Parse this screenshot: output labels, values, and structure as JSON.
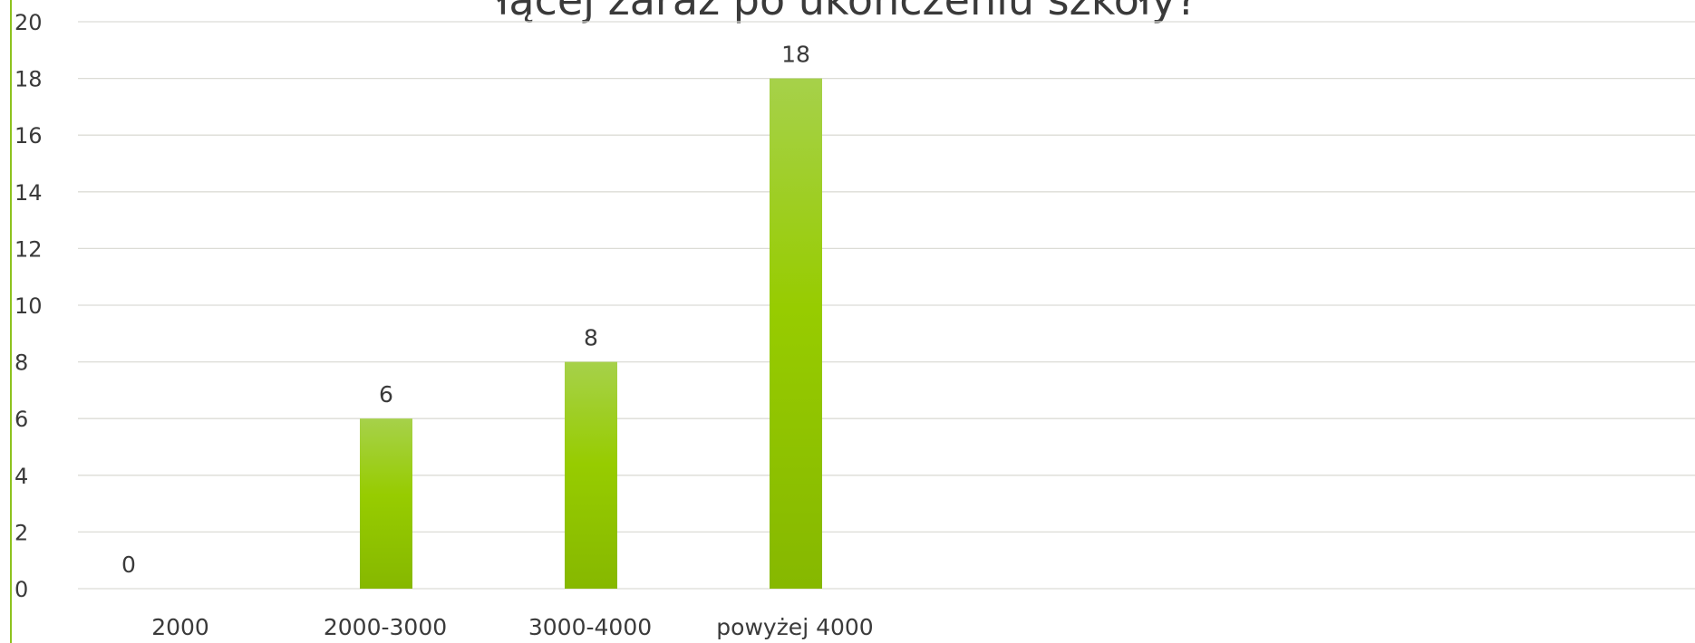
{
  "chart_data": {
    "type": "bar",
    "title": "łącej zaraz po ukończeniu szkoły?",
    "categories": [
      "2000",
      "2000-3000",
      "3000-4000",
      "powyżej 4000"
    ],
    "values": [
      0,
      6,
      8,
      18
    ],
    "yticks": [
      "0",
      "2",
      "4",
      "6",
      "8",
      "10",
      "12",
      "14",
      "16",
      "18",
      "20"
    ],
    "ylim": [
      0,
      20
    ],
    "xlabel": "",
    "ylabel": "",
    "grid": true,
    "legend": "none",
    "colors": {
      "bar_top": "#a6d14a",
      "bar_mid": "#97cc00",
      "bar_bottom": "#86b800",
      "grid": "#dcdcd6",
      "text": "#3a3a3a",
      "accent": "#8dc21f"
    }
  }
}
